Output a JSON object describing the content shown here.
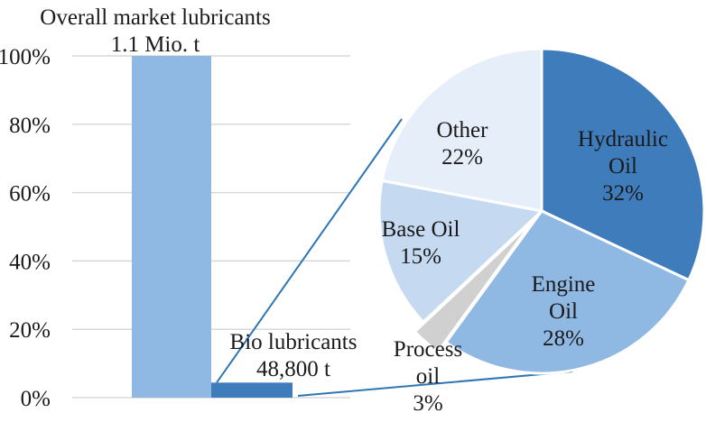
{
  "chart_data": [
    {
      "type": "bar",
      "categories": [
        "Overall market lubricants",
        "Bio lubricants"
      ],
      "values": [
        100,
        4.4
      ],
      "data_labels": [
        {
          "lines": [
            "Overall market lubricants",
            "1.1 Mio. t"
          ]
        },
        {
          "lines": [
            "Bio lubricants",
            "48,800 t"
          ]
        }
      ],
      "ylim": [
        0,
        100
      ],
      "yticks": [
        "0%",
        "20%",
        "40%",
        "60%",
        "80%",
        "100%"
      ],
      "grid": true,
      "colors": [
        "#8fb8e3",
        "#3f7cbb"
      ]
    },
    {
      "type": "pie",
      "labels": [
        "Hydraulic Oil",
        "Engine Oil",
        "Process oil",
        "Base Oil",
        "Other"
      ],
      "values": [
        32,
        28,
        3,
        15,
        22
      ],
      "slice_labels": [
        {
          "lines": [
            "Hydraulic",
            "Oil",
            "32%"
          ]
        },
        {
          "lines": [
            "Engine",
            "Oil",
            "28%"
          ]
        },
        {
          "lines": [
            "Process",
            "oil",
            "3%"
          ]
        },
        {
          "lines": [
            "Base Oil",
            "15%"
          ]
        },
        {
          "lines": [
            "Other",
            "22%"
          ]
        }
      ],
      "colors": [
        "#3f7cbb",
        "#8fb8e3",
        "#d0d0d0",
        "#c5daf1",
        "#e6eef9"
      ],
      "exploded": "Process oil"
    }
  ]
}
